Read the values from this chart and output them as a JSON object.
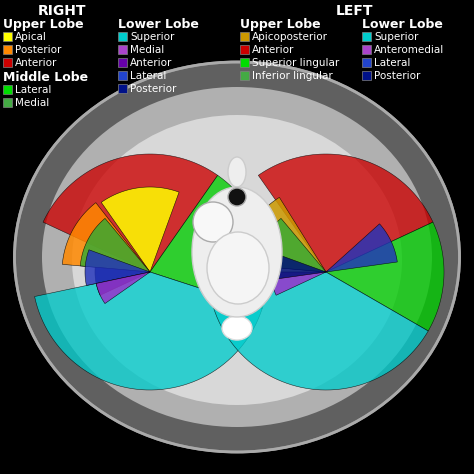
{
  "background_color": "#000000",
  "title_right": "RIGHT",
  "title_left": "LEFT",
  "right_legend": {
    "Upper Lobe": [
      {
        "label": "Apical",
        "color": "#ffff00"
      },
      {
        "label": "Posterior",
        "color": "#ff8800"
      },
      {
        "label": "Anterior",
        "color": "#cc0000"
      }
    ],
    "Middle Lobe": [
      {
        "label": "Lateral",
        "color": "#00dd00"
      },
      {
        "label": "Medial",
        "color": "#44aa44"
      }
    ],
    "Lower Lobe": [
      {
        "label": "Superior",
        "color": "#00cccc"
      },
      {
        "label": "Medial",
        "color": "#aa44cc"
      },
      {
        "label": "Anterior",
        "color": "#6600aa"
      },
      {
        "label": "Lateral",
        "color": "#2244cc"
      },
      {
        "label": "Posterior",
        "color": "#001188"
      }
    ]
  },
  "left_legend": {
    "Upper Lobe": [
      {
        "label": "Apicoposterior",
        "color": "#cc9900"
      },
      {
        "label": "Anterior",
        "color": "#cc0000"
      },
      {
        "label": "Superior lingular",
        "color": "#00dd00"
      },
      {
        "label": "Inferior lingular",
        "color": "#44aa44"
      }
    ],
    "Lower Lobe": [
      {
        "label": "Superior",
        "color": "#00cccc"
      },
      {
        "label": "Anteromedial",
        "color": "#aa44cc"
      },
      {
        "label": "Lateral",
        "color": "#2244cc"
      },
      {
        "label": "Posterior",
        "color": "#001188"
      }
    ]
  },
  "text_color": "#ffffff",
  "header_fontsize": 9,
  "label_fontsize": 7.5,
  "swatch_size": 9
}
